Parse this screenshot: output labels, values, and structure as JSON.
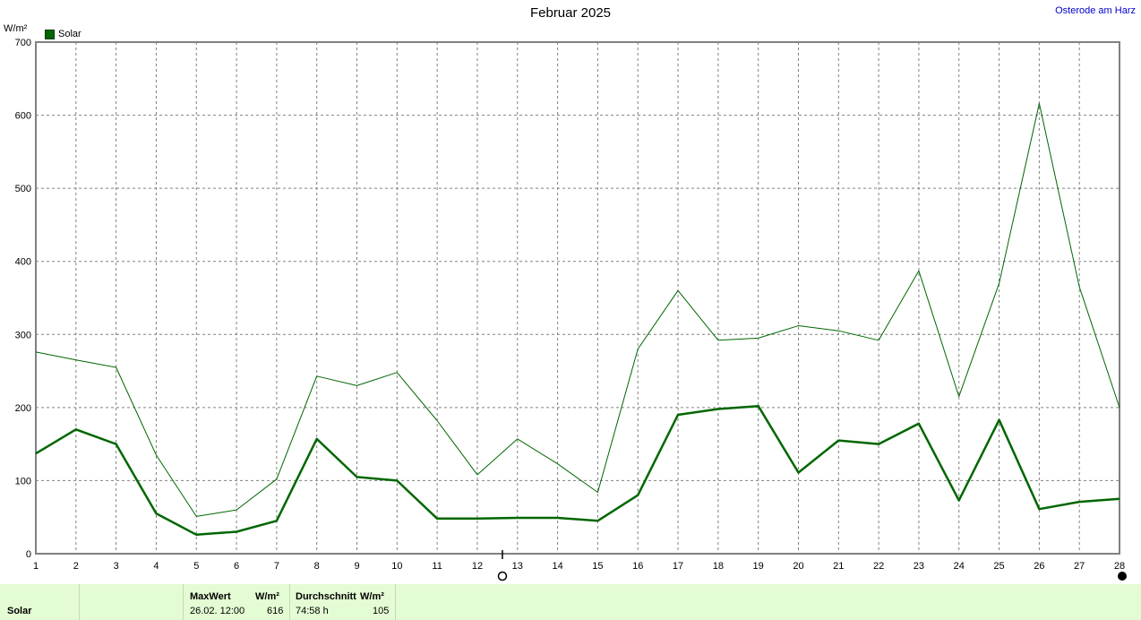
{
  "title": "Februar 2025",
  "location": "Osterode am Harz",
  "unit": "W/m²",
  "legend": {
    "label": "Solar",
    "color": "#006600"
  },
  "chart_data": {
    "type": "line",
    "x": [
      1,
      2,
      3,
      4,
      5,
      6,
      7,
      8,
      9,
      10,
      11,
      12,
      13,
      14,
      15,
      16,
      17,
      18,
      19,
      20,
      21,
      22,
      23,
      24,
      25,
      26,
      27,
      28
    ],
    "x_ticks": [
      "1",
      "2",
      "3",
      "4",
      "5",
      "6",
      "7",
      "8",
      "9",
      "10",
      "11",
      "12",
      "13",
      "14",
      "15",
      "16",
      "17",
      "18",
      "19",
      "20",
      "21",
      "22",
      "23",
      "24",
      "25",
      "26",
      "27",
      "28"
    ],
    "y_ticks": [
      "0",
      "100",
      "200",
      "300",
      "400",
      "500",
      "600",
      "700"
    ],
    "ylim": [
      0,
      700
    ],
    "ylabel": "W/m²",
    "grid": true,
    "legend_position": "top-left",
    "series": [
      {
        "name": "Solar",
        "style": "thick",
        "color": "#006600",
        "values": [
          137,
          170,
          150,
          55,
          26,
          30,
          45,
          157,
          105,
          100,
          48,
          48,
          49,
          49,
          45,
          80,
          190,
          198,
          202,
          111,
          155,
          150,
          178,
          73,
          183,
          61,
          71,
          75
        ]
      },
      {
        "style": "thin",
        "color": "#006600",
        "values": [
          276,
          265,
          255,
          135,
          51,
          60,
          102,
          243,
          230,
          248,
          182,
          108,
          157,
          123,
          84,
          280,
          360,
          292,
          295,
          312,
          305,
          292,
          387,
          215,
          370,
          616,
          365,
          200
        ]
      }
    ]
  },
  "stats": {
    "series_name": "Solar",
    "max_header": "MaxWert",
    "max_unit_header": "W/m²",
    "max_date": "26.02.  12:00",
    "max_value": "616",
    "avg_header": "Durchschnitt",
    "avg_unit_header": "W/m²",
    "avg_time": "74:58 h",
    "avg_value": "105"
  }
}
